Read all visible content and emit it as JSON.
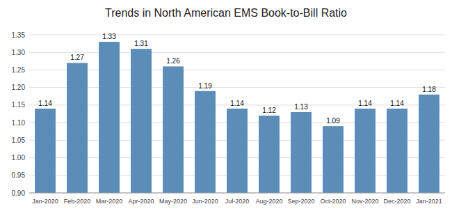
{
  "chart_data": {
    "type": "bar",
    "title": "Trends in North American EMS Book-to-Bill Ratio",
    "categories": [
      "Jan-2020",
      "Feb-2020",
      "Mar-2020",
      "Apr-2020",
      "May-2020",
      "Jun-2020",
      "Jul-2020",
      "Aug-2020",
      "Sep-2020",
      "Oct-2020",
      "Nov-2020",
      "Dec-2020",
      "Jan-2021"
    ],
    "values": [
      1.14,
      1.27,
      1.33,
      1.31,
      1.26,
      1.19,
      1.14,
      1.12,
      1.13,
      1.09,
      1.14,
      1.14,
      1.18
    ],
    "color": "#5B8DB8",
    "ylim": [
      0.9,
      1.35
    ],
    "yticks": [
      {
        "value": 0.9,
        "label": "0.90"
      },
      0.95,
      {
        "value": 1.0,
        "label": "1.00"
      },
      1.05,
      {
        "value": 1.1,
        "label": "1.10"
      },
      1.15,
      {
        "value": 1.2,
        "label": "1.20"
      },
      1.25,
      {
        "value": 1.3,
        "label": "1.30"
      },
      1.35
    ],
    "grid": true,
    "data_labels": true
  }
}
